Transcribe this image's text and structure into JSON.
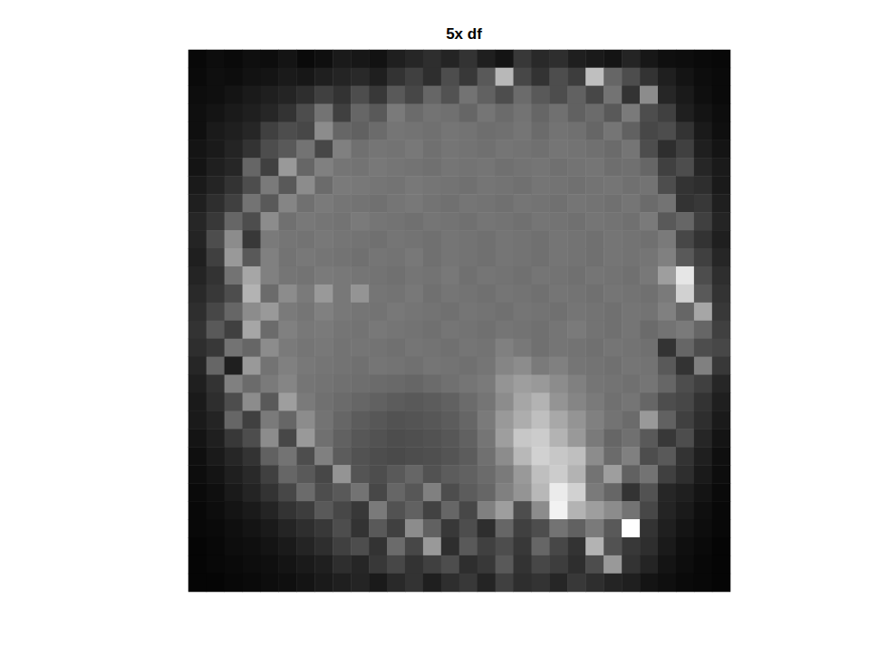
{
  "chart_data": {
    "type": "heatmap",
    "title": "5x df",
    "tick_labels": false,
    "clim": [
      0,
      100
    ],
    "cells": [
      [
        3,
        5,
        4,
        6,
        5,
        8,
        4,
        6,
        10,
        9,
        7,
        12,
        15,
        18,
        14,
        20,
        12,
        8,
        22,
        16,
        18,
        12,
        10,
        8,
        14,
        9,
        6,
        5,
        4,
        3
      ],
      [
        4,
        6,
        5,
        7,
        8,
        10,
        9,
        12,
        14,
        16,
        12,
        20,
        25,
        18,
        30,
        22,
        35,
        72,
        28,
        20,
        30,
        24,
        75,
        40,
        30,
        20,
        12,
        8,
        5,
        4
      ],
      [
        5,
        6,
        8,
        10,
        12,
        14,
        18,
        25,
        20,
        30,
        22,
        35,
        28,
        40,
        32,
        45,
        38,
        30,
        42,
        35,
        30,
        38,
        28,
        45,
        20,
        55,
        15,
        10,
        6,
        4
      ],
      [
        6,
        8,
        10,
        12,
        15,
        20,
        30,
        45,
        25,
        40,
        35,
        48,
        42,
        45,
        44,
        40,
        46,
        42,
        45,
        40,
        44,
        38,
        42,
        35,
        48,
        30,
        25,
        12,
        8,
        5
      ],
      [
        6,
        10,
        12,
        15,
        25,
        30,
        28,
        55,
        40,
        38,
        42,
        46,
        45,
        44,
        46,
        45,
        43,
        44,
        46,
        42,
        45,
        44,
        40,
        46,
        38,
        28,
        30,
        20,
        10,
        6
      ],
      [
        8,
        10,
        14,
        20,
        30,
        35,
        45,
        28,
        50,
        44,
        46,
        45,
        47,
        44,
        46,
        45,
        44,
        46,
        45,
        44,
        46,
        45,
        44,
        42,
        46,
        30,
        18,
        25,
        12,
        8
      ],
      [
        8,
        12,
        15,
        40,
        25,
        60,
        40,
        50,
        46,
        45,
        47,
        46,
        45,
        44,
        46,
        45,
        46,
        44,
        45,
        46,
        44,
        45,
        46,
        43,
        44,
        40,
        25,
        30,
        15,
        10
      ],
      [
        10,
        14,
        20,
        30,
        48,
        35,
        55,
        42,
        48,
        47,
        46,
        45,
        47,
        46,
        45,
        44,
        46,
        45,
        44,
        46,
        45,
        44,
        45,
        46,
        44,
        45,
        30,
        20,
        18,
        10
      ],
      [
        12,
        18,
        25,
        45,
        35,
        52,
        44,
        48,
        46,
        45,
        44,
        46,
        47,
        45,
        44,
        46,
        45,
        44,
        46,
        45,
        44,
        46,
        45,
        44,
        46,
        42,
        45,
        20,
        22,
        12
      ],
      [
        15,
        22,
        40,
        30,
        55,
        44,
        47,
        46,
        45,
        48,
        46,
        45,
        44,
        46,
        45,
        44,
        46,
        45,
        44,
        46,
        45,
        44,
        46,
        45,
        44,
        48,
        35,
        40,
        25,
        14
      ],
      [
        14,
        30,
        55,
        22,
        48,
        46,
        45,
        47,
        46,
        45,
        44,
        46,
        45,
        44,
        46,
        45,
        44,
        46,
        45,
        44,
        46,
        45,
        44,
        46,
        45,
        44,
        48,
        28,
        20,
        12
      ],
      [
        12,
        25,
        60,
        35,
        50,
        45,
        47,
        46,
        45,
        44,
        46,
        45,
        47,
        44,
        46,
        45,
        44,
        46,
        45,
        44,
        46,
        45,
        44,
        46,
        45,
        46,
        50,
        35,
        25,
        15
      ],
      [
        14,
        20,
        45,
        65,
        50,
        46,
        45,
        48,
        47,
        46,
        45,
        44,
        46,
        45,
        47,
        44,
        46,
        45,
        44,
        46,
        45,
        44,
        46,
        45,
        44,
        47,
        62,
        90,
        30,
        18
      ],
      [
        16,
        22,
        30,
        70,
        42,
        55,
        48,
        60,
        47,
        58,
        46,
        45,
        47,
        44,
        46,
        45,
        44,
        46,
        45,
        44,
        46,
        45,
        44,
        46,
        45,
        44,
        48,
        82,
        35,
        20
      ],
      [
        18,
        28,
        40,
        55,
        60,
        48,
        46,
        50,
        47,
        46,
        45,
        47,
        46,
        45,
        44,
        46,
        45,
        44,
        46,
        45,
        44,
        46,
        45,
        44,
        46,
        45,
        50,
        40,
        65,
        22
      ],
      [
        20,
        35,
        25,
        65,
        42,
        50,
        47,
        48,
        46,
        45,
        47,
        46,
        45,
        44,
        46,
        45,
        44,
        46,
        45,
        44,
        46,
        48,
        45,
        44,
        46,
        42,
        45,
        48,
        40,
        25
      ],
      [
        18,
        22,
        45,
        40,
        55,
        48,
        46,
        47,
        45,
        46,
        45,
        44,
        46,
        45,
        44,
        46,
        45,
        50,
        47,
        44,
        46,
        45,
        44,
        46,
        45,
        44,
        20,
        40,
        30,
        28
      ],
      [
        15,
        40,
        12,
        60,
        45,
        50,
        47,
        46,
        45,
        44,
        46,
        45,
        44,
        46,
        45,
        44,
        46,
        52,
        55,
        48,
        50,
        46,
        45,
        44,
        46,
        45,
        35,
        20,
        50,
        22
      ],
      [
        12,
        20,
        50,
        42,
        48,
        52,
        46,
        45,
        44,
        43,
        42,
        41,
        40,
        42,
        44,
        46,
        48,
        58,
        62,
        60,
        55,
        50,
        46,
        45,
        44,
        46,
        40,
        30,
        25,
        15
      ],
      [
        10,
        18,
        30,
        55,
        35,
        62,
        48,
        44,
        42,
        40,
        38,
        36,
        35,
        36,
        38,
        42,
        46,
        55,
        65,
        70,
        58,
        52,
        48,
        44,
        46,
        40,
        30,
        28,
        20,
        12
      ],
      [
        10,
        14,
        40,
        25,
        48,
        40,
        55,
        45,
        40,
        36,
        34,
        32,
        33,
        34,
        36,
        40,
        48,
        60,
        68,
        75,
        66,
        58,
        50,
        45,
        42,
        60,
        38,
        25,
        18,
        10
      ],
      [
        8,
        12,
        22,
        30,
        55,
        28,
        60,
        44,
        38,
        34,
        32,
        30,
        31,
        32,
        34,
        38,
        46,
        62,
        78,
        80,
        70,
        60,
        48,
        40,
        44,
        35,
        22,
        30,
        15,
        8
      ],
      [
        6,
        10,
        15,
        20,
        38,
        45,
        30,
        50,
        36,
        32,
        30,
        29,
        30,
        31,
        33,
        36,
        44,
        55,
        72,
        82,
        78,
        75,
        55,
        42,
        50,
        30,
        35,
        20,
        12,
        6
      ],
      [
        5,
        8,
        12,
        16,
        25,
        40,
        35,
        28,
        58,
        33,
        30,
        35,
        40,
        32,
        36,
        38,
        42,
        48,
        60,
        75,
        80,
        70,
        45,
        62,
        38,
        45,
        25,
        18,
        10,
        5
      ],
      [
        4,
        6,
        10,
        14,
        20,
        28,
        42,
        30,
        35,
        45,
        28,
        40,
        34,
        50,
        30,
        36,
        40,
        50,
        58,
        72,
        92,
        82,
        48,
        40,
        20,
        32,
        15,
        12,
        8,
        4
      ],
      [
        3,
        5,
        8,
        10,
        14,
        20,
        24,
        35,
        28,
        22,
        48,
        32,
        38,
        26,
        40,
        28,
        50,
        62,
        30,
        55,
        95,
        70,
        62,
        55,
        45,
        28,
        14,
        10,
        6,
        3
      ],
      [
        3,
        4,
        6,
        8,
        10,
        14,
        18,
        22,
        30,
        20,
        35,
        25,
        55,
        38,
        22,
        30,
        18,
        40,
        25,
        30,
        45,
        38,
        48,
        35,
        100,
        20,
        12,
        8,
        5,
        3
      ],
      [
        2,
        3,
        5,
        6,
        8,
        10,
        14,
        18,
        25,
        30,
        20,
        42,
        28,
        60,
        18,
        35,
        25,
        30,
        22,
        40,
        28,
        20,
        70,
        32,
        22,
        18,
        10,
        6,
        4,
        2
      ],
      [
        2,
        3,
        4,
        5,
        6,
        8,
        10,
        12,
        18,
        15,
        22,
        28,
        20,
        25,
        30,
        18,
        22,
        35,
        20,
        28,
        24,
        18,
        30,
        60,
        20,
        14,
        8,
        5,
        3,
        2
      ],
      [
        2,
        2,
        3,
        4,
        5,
        6,
        8,
        10,
        12,
        14,
        10,
        16,
        20,
        12,
        18,
        22,
        14,
        25,
        18,
        20,
        15,
        22,
        18,
        14,
        12,
        8,
        6,
        4,
        3,
        2
      ]
    ]
  }
}
